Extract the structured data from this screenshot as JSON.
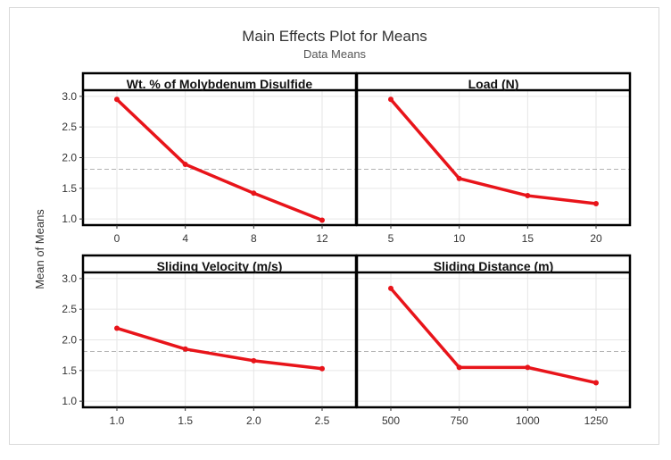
{
  "chart_data": {
    "type": "line",
    "title": "Main Effects Plot for Means",
    "subtitle": "Data Means",
    "ylabel": "Mean of Means",
    "ylim": [
      0.9,
      3.1
    ],
    "yticks": [
      "1.0",
      "1.5",
      "2.0",
      "2.5",
      "3.0"
    ],
    "grand_mean": 1.81,
    "colors": {
      "line": "#e8141a",
      "mean_line": "#b3b3b3",
      "grid": "#e6e6e6",
      "frame": "#000000"
    },
    "panels": [
      {
        "title": "Wt. % of Molybdenum Disulfide",
        "categories": [
          "0",
          "4",
          "8",
          "12"
        ],
        "values": [
          2.95,
          1.89,
          1.42,
          0.98
        ]
      },
      {
        "title": "Load (N)",
        "categories": [
          "5",
          "10",
          "15",
          "20"
        ],
        "values": [
          2.95,
          1.66,
          1.38,
          1.25
        ]
      },
      {
        "title": "Sliding Velocity (m/s)",
        "categories": [
          "1.0",
          "1.5",
          "2.0",
          "2.5"
        ],
        "values": [
          2.19,
          1.85,
          1.66,
          1.53
        ]
      },
      {
        "title": "Sliding Distance (m)",
        "categories": [
          "500",
          "750",
          "1000",
          "1250"
        ],
        "values": [
          2.84,
          1.55,
          1.55,
          1.3
        ]
      }
    ]
  }
}
